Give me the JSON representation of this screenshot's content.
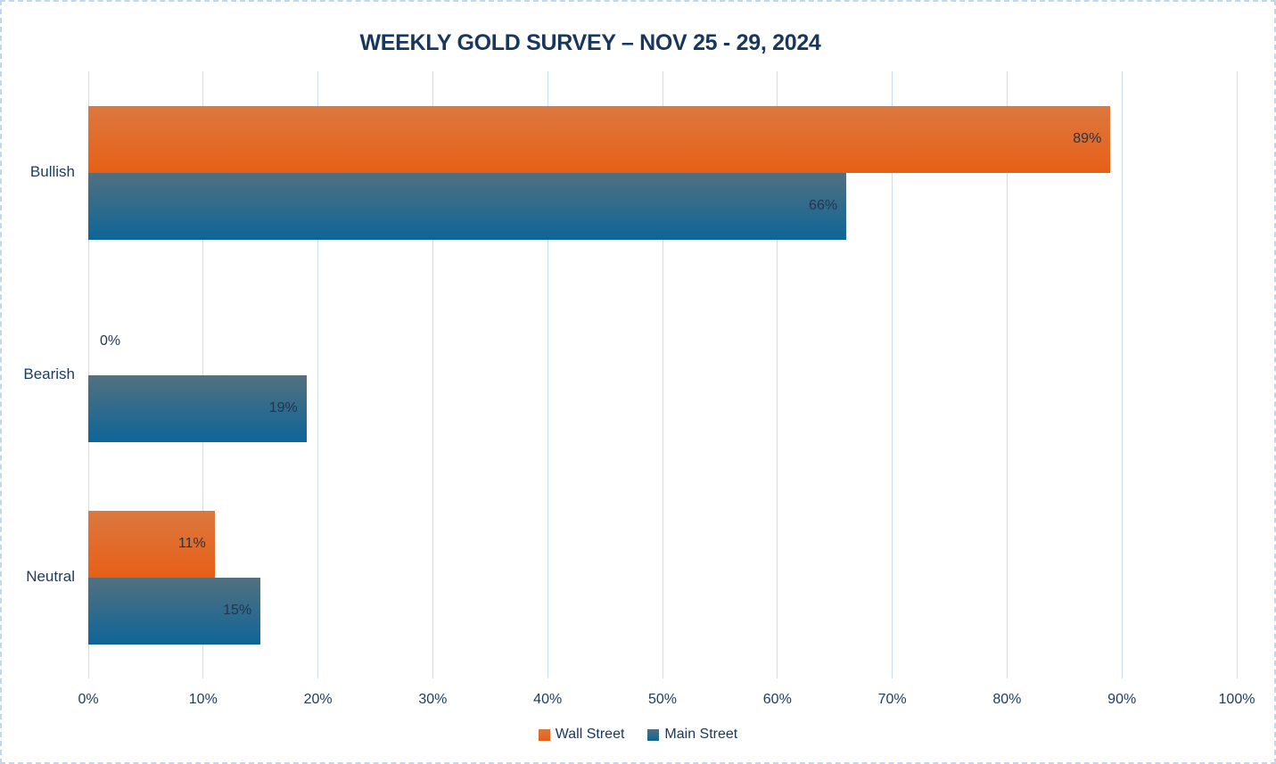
{
  "title": "WEEKLY GOLD SURVEY – NOV 25 - 29, 2024",
  "chart_data": {
    "type": "bar",
    "orientation": "horizontal",
    "title": "WEEKLY GOLD SURVEY – NOV 25 - 29, 2024",
    "categories": [
      "Bullish",
      "Bearish",
      "Neutral"
    ],
    "series": [
      {
        "name": "Wall Street",
        "values": [
          89,
          0,
          11
        ],
        "color_top": "#dc7840",
        "color_bottom": "#e75f16"
      },
      {
        "name": "Main Street",
        "values": [
          66,
          19,
          15
        ],
        "color_top": "#52707f",
        "color_bottom": "#0e6598"
      }
    ],
    "value_suffix": "%",
    "data_labels": {
      "wall_street": [
        "89%",
        "0%",
        "11%"
      ],
      "main_street": [
        "66%",
        "19%",
        "15%"
      ]
    },
    "xlim": [
      0,
      100
    ],
    "x_tick_labels": [
      "0%",
      "10%",
      "20%",
      "30%",
      "40%",
      "50%",
      "60%",
      "70%",
      "80%",
      "90%",
      "100%"
    ],
    "grid": true,
    "gridline_color": "#c9dcf0",
    "text_color": "#17375e",
    "legend_position": "bottom"
  }
}
